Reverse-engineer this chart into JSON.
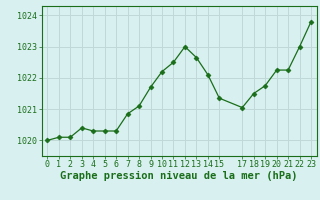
{
  "x": [
    0,
    1,
    2,
    3,
    4,
    5,
    6,
    7,
    8,
    9,
    10,
    11,
    12,
    13,
    14,
    15,
    17,
    18,
    19,
    20,
    21,
    22,
    23
  ],
  "y": [
    1020.0,
    1020.1,
    1020.1,
    1020.4,
    1020.3,
    1020.3,
    1020.3,
    1020.85,
    1021.1,
    1021.7,
    1022.2,
    1022.5,
    1023.0,
    1022.65,
    1022.1,
    1021.35,
    1021.05,
    1021.5,
    1021.75,
    1022.25,
    1022.25,
    1023.0,
    1023.8
  ],
  "line_color": "#1a6e1a",
  "marker": "D",
  "marker_size": 2.5,
  "bg_color": "#d8f0f0",
  "grid_color": "#c0d8d8",
  "xlabel": "Graphe pression niveau de la mer (hPa)",
  "xlabel_color": "#1a6e1a",
  "xlabel_fontsize": 7.5,
  "tick_color": "#1a6e1a",
  "tick_fontsize": 6,
  "yticks": [
    1020,
    1021,
    1022,
    1023,
    1024
  ],
  "ylim": [
    1019.5,
    1024.3
  ],
  "xlim": [
    -0.5,
    23.5
  ],
  "xticks": [
    0,
    1,
    2,
    3,
    4,
    5,
    6,
    7,
    8,
    9,
    10,
    11,
    12,
    13,
    14,
    15,
    17,
    18,
    19,
    20,
    21,
    22,
    23
  ]
}
